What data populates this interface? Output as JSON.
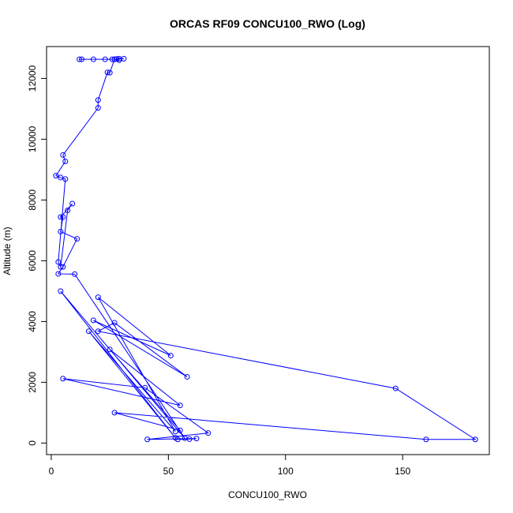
{
  "chart_data": {
    "type": "line",
    "title": "ORCAS RF09 CONCU100_RWO (Log)",
    "xlabel": "CONCU100_RWO",
    "ylabel": "Altitude (m)",
    "xlim": [
      -2,
      187
    ],
    "ylim": [
      -380,
      13050
    ],
    "x_ticks": [
      0,
      50,
      100,
      150
    ],
    "y_ticks": [
      0,
      2000,
      4000,
      6000,
      8000,
      10000,
      12000
    ],
    "grid": false,
    "markers": "open-circle",
    "colors": {
      "series": "#0000ff"
    },
    "series": [
      {
        "points": [
          [
            13,
            12630
          ],
          [
            12,
            12630
          ],
          [
            18,
            12630
          ],
          [
            23,
            12630
          ],
          [
            26,
            12630
          ],
          [
            28,
            12640
          ],
          [
            29,
            12650
          ],
          [
            31,
            12650
          ],
          [
            27,
            12630
          ],
          [
            29,
            12600
          ],
          [
            27,
            12630
          ],
          [
            25,
            12190
          ],
          [
            24,
            12200
          ],
          [
            20,
            11290
          ],
          [
            20,
            11030
          ],
          [
            5,
            9480
          ],
          [
            6,
            9270
          ],
          [
            2,
            8800
          ],
          [
            4,
            8740
          ],
          [
            6,
            8690
          ],
          [
            3,
            5960
          ],
          [
            4,
            5800
          ],
          [
            7,
            7660
          ],
          [
            9,
            7880
          ],
          [
            4,
            7440
          ],
          [
            5,
            7440
          ],
          [
            4,
            6960
          ],
          [
            11,
            6720
          ],
          [
            5,
            5800
          ],
          [
            3,
            5570
          ],
          [
            10,
            5560
          ],
          [
            57,
            160
          ],
          [
            4,
            5000
          ],
          [
            53,
            170
          ],
          [
            16,
            3680
          ],
          [
            53,
            380
          ],
          [
            20,
            4800
          ],
          [
            51,
            2880
          ],
          [
            18,
            4040
          ],
          [
            58,
            2180
          ],
          [
            27,
            3960
          ],
          [
            20,
            3680
          ],
          [
            147,
            1800
          ],
          [
            181,
            120
          ],
          [
            160,
            120
          ],
          [
            27,
            1000
          ],
          [
            55,
            420
          ],
          [
            25,
            3080
          ],
          [
            55,
            1240
          ],
          [
            5,
            2120
          ],
          [
            40,
            1820
          ],
          [
            67,
            330
          ],
          [
            41,
            120
          ],
          [
            62,
            150
          ],
          [
            59,
            130
          ],
          [
            54,
            120
          ]
        ]
      }
    ]
  }
}
